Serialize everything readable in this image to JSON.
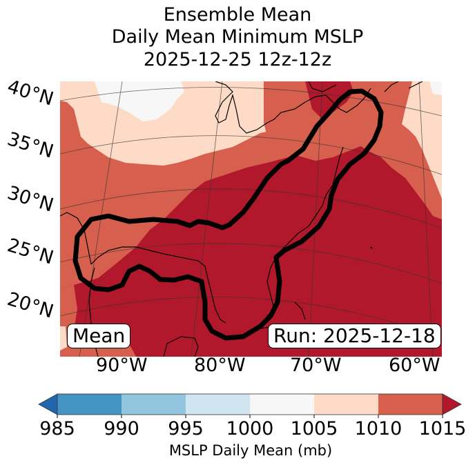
{
  "title": {
    "line1": "Ensemble Mean",
    "line2": "Daily Mean Minimum MSLP",
    "line3": "2025-12-25 12z-12z"
  },
  "map": {
    "projection": "Lambert conformal",
    "latitude_labels": [
      "40°N",
      "35°N",
      "30°N",
      "25°N",
      "20°N"
    ],
    "longitude_labels": [
      "90°W",
      "80°W",
      "70°W",
      "60°W"
    ],
    "annotations": {
      "left_box": "Mean",
      "right_box": "Run: 2025-12-18"
    },
    "contour_description": "Thick black contour enclosing Gulf of Mexico, Florida and US East Coast to Nova Scotia",
    "field_regions": [
      {
        "region": "Great Plains / Midwest (north-west)",
        "bin": "1000-1005",
        "color": "#f7f7f7"
      },
      {
        "region": "Central US band",
        "bin": "1005-1010",
        "color": "#fddbc7"
      },
      {
        "region": "Southern US / western margin",
        "bin": "1010-1015",
        "color": "#d6604d"
      },
      {
        "region": "Gulf of Mexico, Atlantic, East Coast",
        "bin": ">1015",
        "color": "#b2182b"
      }
    ]
  },
  "colorbar": {
    "label": "MSLP Daily Mean (mb)",
    "ticks": [
      "985",
      "990",
      "995",
      "1000",
      "1005",
      "1010",
      "1015"
    ],
    "bins": [
      {
        "range": "<985",
        "color": "#2166ac",
        "extend": "min"
      },
      {
        "range": "985-990",
        "color": "#4393c3"
      },
      {
        "range": "990-995",
        "color": "#92c5de"
      },
      {
        "range": "995-1000",
        "color": "#d1e5f0"
      },
      {
        "range": "1000-1005",
        "color": "#f7f7f7"
      },
      {
        "range": "1005-1010",
        "color": "#fddbc7"
      },
      {
        "range": "1010-1015",
        "color": "#d6604d"
      },
      {
        "range": ">1015",
        "color": "#b2182b",
        "extend": "max"
      }
    ]
  }
}
